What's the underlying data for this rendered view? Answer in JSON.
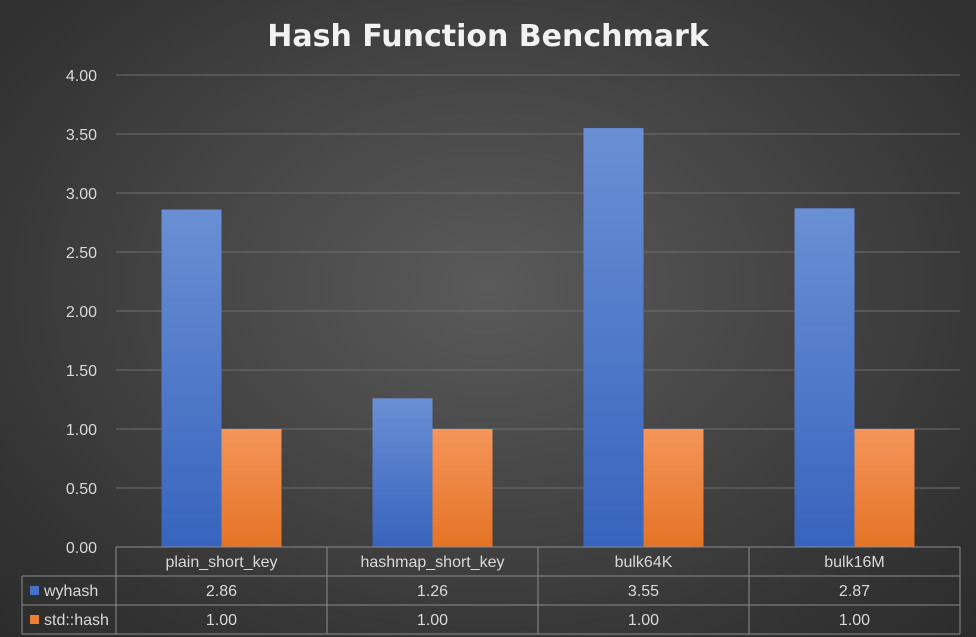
{
  "chart_data": {
    "type": "bar",
    "title": "Hash Function Benchmark",
    "categories": [
      "plain_short_key",
      "hashmap_short_key",
      "bulk64K",
      "bulk16M"
    ],
    "series": [
      {
        "name": "wyhash",
        "values": [
          2.86,
          1.26,
          3.55,
          2.87
        ],
        "labels": [
          "2.86",
          "1.26",
          "3.55",
          "2.87"
        ],
        "color": "#4472c4"
      },
      {
        "name": "std::hash",
        "values": [
          1.0,
          1.0,
          1.0,
          1.0
        ],
        "labels": [
          "1.00",
          "1.00",
          "1.00",
          "1.00"
        ],
        "color": "#ed7d31"
      }
    ],
    "ylim": [
      0,
      4
    ],
    "yticks": [
      "0.00",
      "0.50",
      "1.00",
      "1.50",
      "2.00",
      "2.50",
      "3.00",
      "3.50",
      "4.00"
    ],
    "grid": true,
    "legend": "data-table"
  }
}
